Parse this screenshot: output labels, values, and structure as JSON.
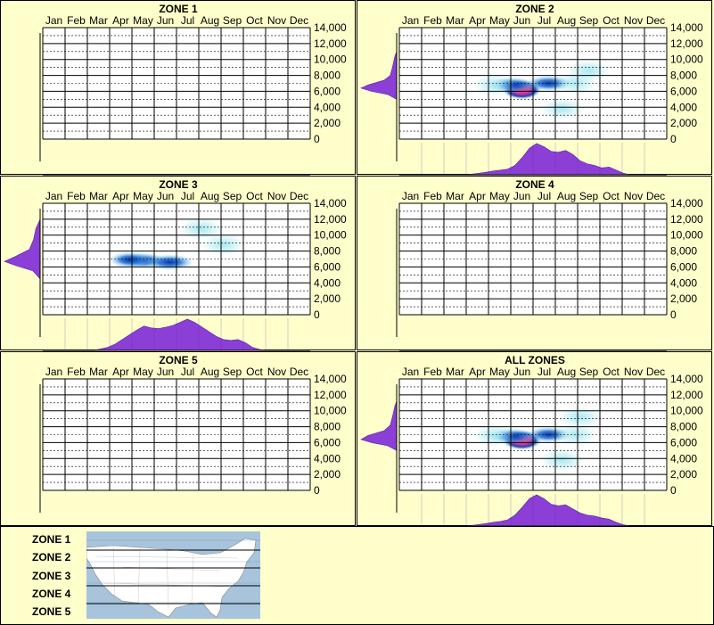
{
  "months": [
    "Jan",
    "Feb",
    "Mar",
    "Apr",
    "May",
    "Jun",
    "Jul",
    "Aug",
    "Sep",
    "Oct",
    "Nov",
    "Dec"
  ],
  "y_ticks": [
    "14,000",
    "12,000",
    "10,000",
    "8,000",
    "6,000",
    "4,000",
    "2,000",
    "0"
  ],
  "colors": {
    "background": "#ffffcc",
    "density": "#8b3fd6",
    "heat_low": "#9fe6ef",
    "heat_mid": "#1e6fd6",
    "heat_high": "#ff1f6f"
  },
  "chart_data": [
    {
      "type": "heatmap",
      "title": "ZONE 1",
      "ylim": [
        0,
        14000
      ],
      "hotspots": []
    },
    {
      "type": "heatmap",
      "title": "ZONE 2",
      "ylim": [
        0,
        14000
      ],
      "hotspots": [
        {
          "month": 6.0,
          "elev": 6200,
          "level": 1.0
        },
        {
          "month": 5.6,
          "elev": 6800,
          "level": 0.55
        },
        {
          "month": 7.2,
          "elev": 7000,
          "level": 0.55
        },
        {
          "month": 8.4,
          "elev": 7000,
          "level": 0.35
        },
        {
          "month": 9.0,
          "elev": 8600,
          "level": 0.2
        },
        {
          "month": 4.8,
          "elev": 6800,
          "level": 0.25
        },
        {
          "month": 7.8,
          "elev": 3800,
          "level": 0.12
        }
      ]
    },
    {
      "type": "heatmap",
      "title": "ZONE 3",
      "ylim": [
        0,
        14000
      ],
      "hotspots": [
        {
          "month": 5.0,
          "elev": 6800,
          "level": 0.6
        },
        {
          "month": 6.2,
          "elev": 6600,
          "level": 0.6
        },
        {
          "month": 4.4,
          "elev": 6900,
          "level": 0.45
        },
        {
          "month": 7.6,
          "elev": 10800,
          "level": 0.2
        },
        {
          "month": 8.6,
          "elev": 8800,
          "level": 0.18
        }
      ]
    },
    {
      "type": "heatmap",
      "title": "ZONE 4",
      "ylim": [
        0,
        14000
      ],
      "hotspots": []
    },
    {
      "type": "heatmap",
      "title": "ZONE 5",
      "ylim": [
        0,
        14000
      ],
      "hotspots": []
    },
    {
      "type": "heatmap",
      "title": "ALL ZONES",
      "ylim": [
        0,
        14000
      ],
      "hotspots": [
        {
          "month": 6.0,
          "elev": 6300,
          "level": 1.0
        },
        {
          "month": 5.6,
          "elev": 6800,
          "level": 0.55
        },
        {
          "month": 7.2,
          "elev": 7000,
          "level": 0.5
        },
        {
          "month": 8.4,
          "elev": 7000,
          "level": 0.3
        },
        {
          "month": 8.6,
          "elev": 9200,
          "level": 0.2
        },
        {
          "month": 4.8,
          "elev": 6900,
          "level": 0.3
        },
        {
          "month": 7.8,
          "elev": 3800,
          "level": 0.12
        }
      ]
    }
  ],
  "month_density": [
    [],
    [
      0,
      0,
      0,
      0,
      0,
      0,
      0,
      0,
      0,
      0,
      0.02,
      0.05,
      0.08,
      0.12,
      0.15,
      0.18,
      0.3,
      0.55,
      0.85,
      1.0,
      0.9,
      0.75,
      0.72,
      0.78,
      0.65,
      0.45,
      0.35,
      0.3,
      0.22,
      0.25,
      0.15,
      0.05,
      0,
      0,
      0,
      0,
      0,
      0
    ],
    [
      0,
      0,
      0,
      0,
      0,
      0,
      0,
      0,
      0.05,
      0.1,
      0.2,
      0.35,
      0.5,
      0.65,
      0.78,
      0.72,
      0.7,
      0.74,
      0.8,
      0.9,
      1.0,
      0.9,
      0.75,
      0.6,
      0.45,
      0.35,
      0.32,
      0.35,
      0.25,
      0.1,
      0.03,
      0,
      0,
      0,
      0,
      0,
      0,
      0
    ],
    [],
    [],
    [
      0,
      0,
      0,
      0,
      0,
      0,
      0,
      0,
      0,
      0,
      0.02,
      0.05,
      0.08,
      0.12,
      0.15,
      0.2,
      0.35,
      0.6,
      0.88,
      1.0,
      0.88,
      0.7,
      0.65,
      0.68,
      0.55,
      0.42,
      0.35,
      0.32,
      0.26,
      0.22,
      0.12,
      0.04,
      0,
      0,
      0,
      0,
      0,
      0
    ]
  ],
  "elev_density": [
    [],
    [
      {
        "elev": 5000,
        "v": 0.0
      },
      {
        "elev": 5600,
        "v": 0.25
      },
      {
        "elev": 6000,
        "v": 0.7
      },
      {
        "elev": 6400,
        "v": 1.0
      },
      {
        "elev": 6800,
        "v": 0.8
      },
      {
        "elev": 7400,
        "v": 0.35
      },
      {
        "elev": 8000,
        "v": 0.18
      },
      {
        "elev": 9000,
        "v": 0.12
      },
      {
        "elev": 10400,
        "v": 0.05
      },
      {
        "elev": 11000,
        "v": 0.0
      }
    ],
    [
      {
        "elev": 4500,
        "v": 0.0
      },
      {
        "elev": 5500,
        "v": 0.2
      },
      {
        "elev": 6200,
        "v": 0.7
      },
      {
        "elev": 6700,
        "v": 1.0
      },
      {
        "elev": 7300,
        "v": 0.7
      },
      {
        "elev": 8200,
        "v": 0.3
      },
      {
        "elev": 9500,
        "v": 0.18
      },
      {
        "elev": 10800,
        "v": 0.12
      },
      {
        "elev": 12000,
        "v": 0.0
      }
    ],
    [],
    [],
    [
      {
        "elev": 5000,
        "v": 0.0
      },
      {
        "elev": 5600,
        "v": 0.25
      },
      {
        "elev": 6000,
        "v": 0.7
      },
      {
        "elev": 6400,
        "v": 1.0
      },
      {
        "elev": 6900,
        "v": 0.8
      },
      {
        "elev": 7500,
        "v": 0.35
      },
      {
        "elev": 8200,
        "v": 0.18
      },
      {
        "elev": 9200,
        "v": 0.12
      },
      {
        "elev": 10600,
        "v": 0.05
      },
      {
        "elev": 11200,
        "v": 0.0
      }
    ]
  ],
  "legend": {
    "zones": [
      "ZONE 1",
      "ZONE 2",
      "ZONE 3",
      "ZONE 4",
      "ZONE 5"
    ]
  }
}
